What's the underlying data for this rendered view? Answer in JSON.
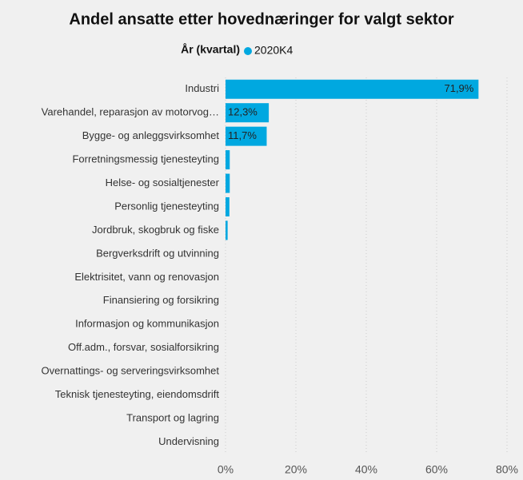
{
  "chart_data": {
    "type": "bar",
    "orientation": "horizontal",
    "title": "Andel ansatte etter hovednæringer for valgt sektor",
    "legend_title": "År (kvartal)",
    "categories": [
      "Industri",
      "Varehandel, reparasjon av motorvog…",
      "Bygge- og anleggsvirksomhet",
      "Forretningsmessig tjenesteyting",
      "Helse- og sosialtjenester",
      "Personlig tjenesteyting",
      "Jordbruk, skogbruk og fiske",
      "Bergverksdrift og utvinning",
      "Elektrisitet, vann og renovasjon",
      "Finansiering og forsikring",
      "Informasjon og kommunikasjon",
      "Off.adm., forsvar, sosialforsikring",
      "Overnattings- og serveringsvirksomhet",
      "Teknisk tjenesteyting, eiendomsdrift",
      "Transport og lagring",
      "Undervisning"
    ],
    "series": [
      {
        "name": "2020K4",
        "color": "#00a8e0",
        "values": [
          71.9,
          12.3,
          11.7,
          1.2,
          1.2,
          1.1,
          0.6,
          0,
          0,
          0,
          0,
          0,
          0,
          0,
          0,
          0
        ],
        "value_labels": [
          "71,9%",
          "12,3%",
          "11,7%",
          null,
          null,
          null,
          null,
          null,
          null,
          null,
          null,
          null,
          null,
          null,
          null,
          null
        ]
      }
    ],
    "xlim": [
      0,
      80
    ],
    "xticks": [
      {
        "value": 0,
        "label": "0%"
      },
      {
        "value": 20,
        "label": "20%"
      },
      {
        "value": 40,
        "label": "40%"
      },
      {
        "value": 60,
        "label": "60%"
      },
      {
        "value": 80,
        "label": "80%"
      }
    ],
    "grid": true
  }
}
